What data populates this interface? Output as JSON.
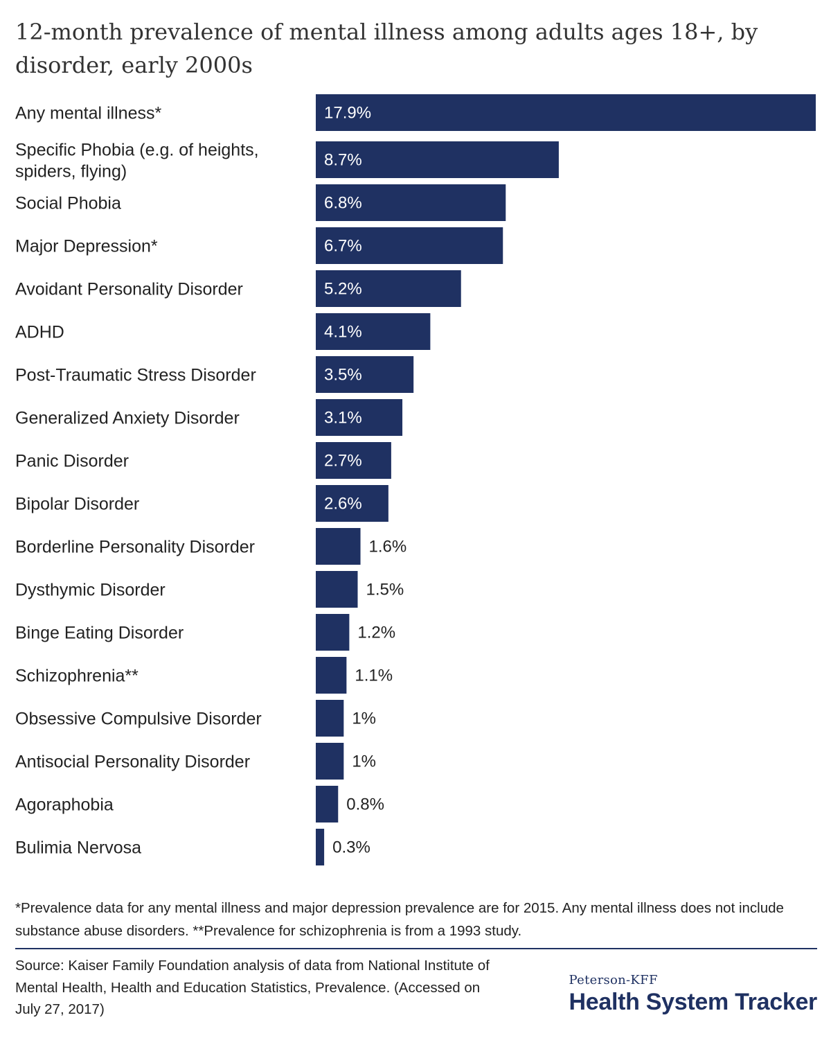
{
  "colors": {
    "bar": "#1f3162",
    "label_inside": "#ffffff",
    "label_outside": "#222222",
    "brand": "#1f3162"
  },
  "chart_data": {
    "type": "bar",
    "orientation": "horizontal",
    "title": "12-month prevalence of mental illness among adults ages 18+, by disorder, early 2000s",
    "categories": [
      "Any mental illness*",
      "Specific Phobia (e.g. of heights, spiders, flying)",
      "Social Phobia",
      "Major Depression*",
      "Avoidant Personality Disorder",
      "ADHD",
      "Post-Traumatic Stress Disorder",
      "Generalized Anxiety Disorder",
      "Panic Disorder",
      "Bipolar Disorder",
      "Borderline Personality Disorder",
      "Dysthymic Disorder",
      "Binge Eating Disorder",
      "Schizophrenia**",
      "Obsessive Compulsive Disorder",
      "Antisocial Personality Disorder",
      "Agoraphobia",
      "Bulimia Nervosa"
    ],
    "values": [
      17.9,
      8.7,
      6.8,
      6.7,
      5.2,
      4.1,
      3.5,
      3.1,
      2.7,
      2.6,
      1.6,
      1.5,
      1.2,
      1.1,
      1,
      1,
      0.8,
      0.3
    ],
    "value_labels": [
      "17.9%",
      "8.7%",
      "6.8%",
      "6.7%",
      "5.2%",
      "4.1%",
      "3.5%",
      "3.1%",
      "2.7%",
      "2.6%",
      "1.6%",
      "1.5%",
      "1.2%",
      "1.1%",
      "1%",
      "1%",
      "0.8%",
      "0.3%"
    ],
    "xlim": [
      0,
      17.9
    ],
    "grid": false,
    "legend": "none"
  },
  "footnote": "*Prevalence data for any mental illness and major depression prevalence are for 2015. Any mental illness does not include substance abuse disorders. **Prevalence for schizophrenia is from a 1993 study.",
  "source": "Source: Kaiser Family Foundation analysis of data from National Institute of Mental Health, Health and Education Statistics, Prevalence. (Accessed on July 27, 2017)",
  "brand": {
    "small": "Peterson-KFF",
    "large": "Health System Tracker"
  }
}
